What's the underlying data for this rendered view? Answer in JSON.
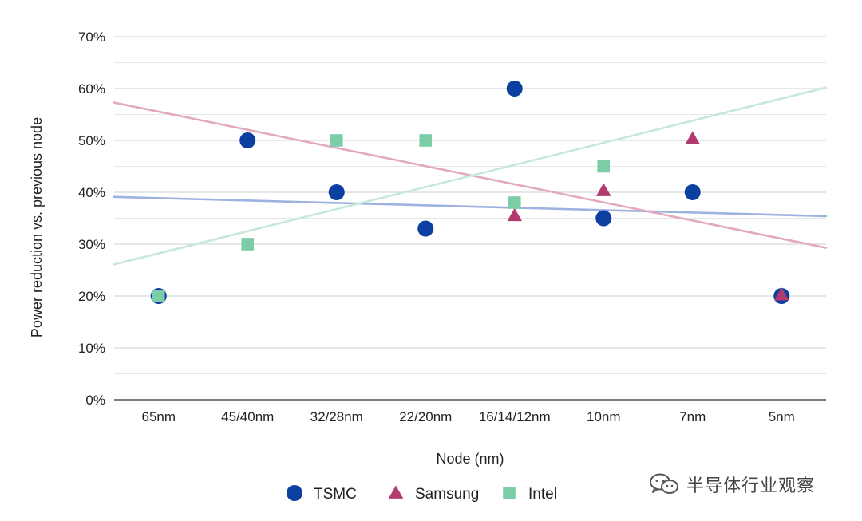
{
  "chart_data": {
    "type": "scatter",
    "categories": [
      "65nm",
      "45/40nm",
      "32/28nm",
      "22/20nm",
      "16/14/12nm",
      "10nm",
      "7nm",
      "5nm"
    ],
    "xlabel": "Node (nm)",
    "ylabel": "Power reduction vs. previous node",
    "ylim": [
      0,
      70
    ],
    "ytick_step": 10,
    "yticks": [
      "0%",
      "10%",
      "20%",
      "30%",
      "40%",
      "50%",
      "60%",
      "70%"
    ],
    "grid": true,
    "legend_position": "bottom",
    "series": [
      {
        "name": "TSMC",
        "marker": "circle",
        "color": "#0B3FA0",
        "values": [
          20,
          50,
          40,
          33,
          60,
          35,
          40,
          20
        ],
        "trendline": {
          "color": "#9DB2E0",
          "start": 39.1,
          "end": 35.4
        }
      },
      {
        "name": "Samsung",
        "marker": "triangle",
        "color": "#B23A6E",
        "values": [
          null,
          null,
          null,
          null,
          35.5,
          40.3,
          50.3,
          20.2
        ],
        "trendline": {
          "color": "#E3A9BD",
          "start": 57.3,
          "end": 29.3
        }
      },
      {
        "name": "Intel",
        "marker": "square",
        "color": "#7CCCA8",
        "values": [
          20,
          30,
          50,
          50,
          38,
          45,
          null,
          null
        ],
        "trendline": {
          "color": "#C6E8D6",
          "start": 26.1,
          "end": 60.2
        }
      }
    ]
  },
  "watermark": {
    "text": "半导体行业观察",
    "icon": "wechat-icon"
  }
}
